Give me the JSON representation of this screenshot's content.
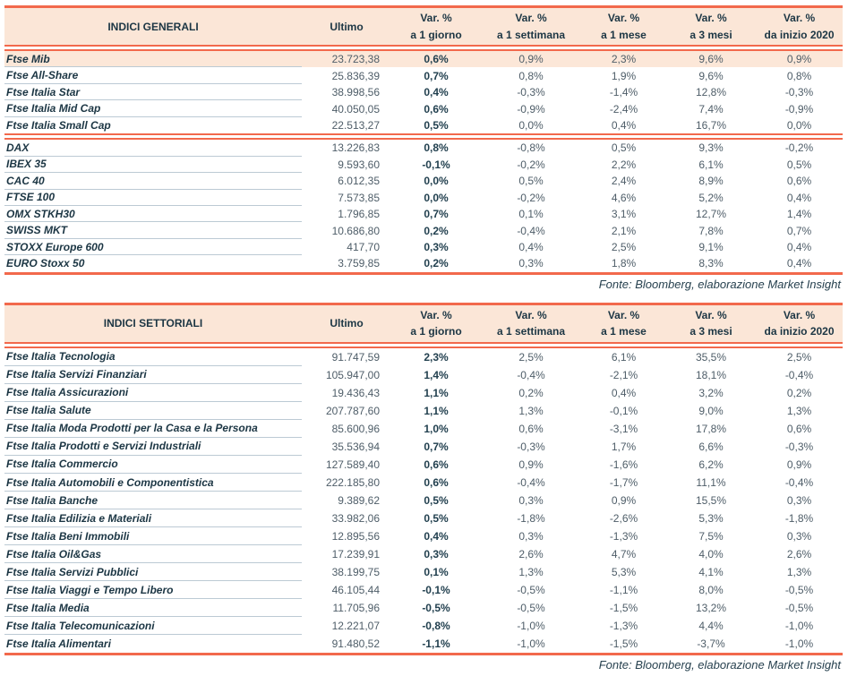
{
  "colors": {
    "accent_orange": "#F2694C",
    "header_peach": "#FBE6D7",
    "highlight_row": "#FCE7D8",
    "text_dark": "#1C3644"
  },
  "tables": [
    {
      "title": "INDICI GENERALI",
      "ultimo_label": "Ultimo",
      "var_columns": [
        {
          "top": "Var. %",
          "bottom": "a 1 giorno"
        },
        {
          "top": "Var. %",
          "bottom": "a 1 settimana"
        },
        {
          "top": "Var. %",
          "bottom": "a 1 mese"
        },
        {
          "top": "Var. %",
          "bottom": "a 3 mesi"
        },
        {
          "top": "Var. %",
          "bottom": "da inizio 2020"
        }
      ],
      "rows": [
        {
          "name": "Ftse Mib",
          "ultimo": "23.723,38",
          "var_1d": "0,6%",
          "var_1w": "0,9%",
          "var_1m": "2,3%",
          "var_3m": "9,6%",
          "var_ytd": "0,9%",
          "highlight": true
        },
        {
          "name": "Ftse All-Share",
          "ultimo": "25.836,39",
          "var_1d": "0,7%",
          "var_1w": "0,8%",
          "var_1m": "1,9%",
          "var_3m": "9,6%",
          "var_ytd": "0,8%"
        },
        {
          "name": "Ftse Italia Star",
          "ultimo": "38.998,56",
          "var_1d": "0,4%",
          "var_1w": "-0,3%",
          "var_1m": "-1,4%",
          "var_3m": "12,8%",
          "var_ytd": "-0,3%"
        },
        {
          "name": "Ftse Italia Mid Cap",
          "ultimo": "40.050,05",
          "var_1d": "0,6%",
          "var_1w": "-0,9%",
          "var_1m": "-2,4%",
          "var_3m": "7,4%",
          "var_ytd": "-0,9%"
        },
        {
          "name": "Ftse Italia Small Cap",
          "ultimo": "22.513,27",
          "var_1d": "0,5%",
          "var_1w": "0,0%",
          "var_1m": "0,4%",
          "var_3m": "16,7%",
          "var_ytd": "0,0%",
          "divider_after": true
        },
        {
          "name": "DAX",
          "ultimo": "13.226,83",
          "var_1d": "0,8%",
          "var_1w": "-0,8%",
          "var_1m": "0,5%",
          "var_3m": "9,3%",
          "var_ytd": "-0,2%"
        },
        {
          "name": "IBEX 35",
          "ultimo": "9.593,60",
          "var_1d": "-0,1%",
          "var_1w": "-0,2%",
          "var_1m": "2,2%",
          "var_3m": "6,1%",
          "var_ytd": "0,5%"
        },
        {
          "name": "CAC 40",
          "ultimo": "6.012,35",
          "var_1d": "0,0%",
          "var_1w": "0,5%",
          "var_1m": "2,4%",
          "var_3m": "8,9%",
          "var_ytd": "0,6%"
        },
        {
          "name": "FTSE 100",
          "ultimo": "7.573,85",
          "var_1d": "0,0%",
          "var_1w": "-0,2%",
          "var_1m": "4,6%",
          "var_3m": "5,2%",
          "var_ytd": "0,4%"
        },
        {
          "name": "OMX STKH30",
          "ultimo": "1.796,85",
          "var_1d": "0,7%",
          "var_1w": "0,1%",
          "var_1m": "3,1%",
          "var_3m": "12,7%",
          "var_ytd": "1,4%"
        },
        {
          "name": "SWISS MKT",
          "ultimo": "10.686,80",
          "var_1d": "0,2%",
          "var_1w": "-0,4%",
          "var_1m": "2,1%",
          "var_3m": "7,8%",
          "var_ytd": "0,7%"
        },
        {
          "name": "STOXX Europe 600",
          "ultimo": "417,70",
          "var_1d": "0,3%",
          "var_1w": "0,4%",
          "var_1m": "2,5%",
          "var_3m": "9,1%",
          "var_ytd": "0,4%"
        },
        {
          "name": "EURO Stoxx 50",
          "ultimo": "3.759,85",
          "var_1d": "0,2%",
          "var_1w": "0,3%",
          "var_1m": "1,8%",
          "var_3m": "8,3%",
          "var_ytd": "0,4%"
        }
      ],
      "source": "Fonte: Bloomberg, elaborazione Market Insight"
    },
    {
      "title": "INDICI SETTORIALI",
      "ultimo_label": "Ultimo",
      "var_columns": [
        {
          "top": "Var. %",
          "bottom": "a 1 giorno"
        },
        {
          "top": "Var. %",
          "bottom": "a 1 settimana"
        },
        {
          "top": "Var. %",
          "bottom": "a 1 mese"
        },
        {
          "top": "Var. %",
          "bottom": "a 3 mesi"
        },
        {
          "top": "Var. %",
          "bottom": "da inizio 2020"
        }
      ],
      "rows": [
        {
          "name": "Ftse Italia Tecnologia",
          "ultimo": "91.747,59",
          "var_1d": "2,3%",
          "var_1w": "2,5%",
          "var_1m": "6,1%",
          "var_3m": "35,5%",
          "var_ytd": "2,5%"
        },
        {
          "name": "Ftse Italia Servizi Finanziari",
          "ultimo": "105.947,00",
          "var_1d": "1,4%",
          "var_1w": "-0,4%",
          "var_1m": "-2,1%",
          "var_3m": "18,1%",
          "var_ytd": "-0,4%"
        },
        {
          "name": "Ftse Italia Assicurazioni",
          "ultimo": "19.436,43",
          "var_1d": "1,1%",
          "var_1w": "0,2%",
          "var_1m": "0,4%",
          "var_3m": "3,2%",
          "var_ytd": "0,2%"
        },
        {
          "name": "Ftse Italia Salute",
          "ultimo": "207.787,60",
          "var_1d": "1,1%",
          "var_1w": "1,3%",
          "var_1m": "-0,1%",
          "var_3m": "9,0%",
          "var_ytd": "1,3%"
        },
        {
          "name": "Ftse Italia Moda Prodotti per la Casa e la Persona",
          "ultimo": "85.600,96",
          "var_1d": "1,0%",
          "var_1w": "0,6%",
          "var_1m": "-3,1%",
          "var_3m": "17,8%",
          "var_ytd": "0,6%"
        },
        {
          "name": "Ftse Italia Prodotti e Servizi Industriali",
          "ultimo": "35.536,94",
          "var_1d": "0,7%",
          "var_1w": "-0,3%",
          "var_1m": "1,7%",
          "var_3m": "6,6%",
          "var_ytd": "-0,3%"
        },
        {
          "name": "Ftse Italia Commercio",
          "ultimo": "127.589,40",
          "var_1d": "0,6%",
          "var_1w": "0,9%",
          "var_1m": "-1,6%",
          "var_3m": "6,2%",
          "var_ytd": "0,9%"
        },
        {
          "name": "Ftse Italia Automobili e Componentistica",
          "ultimo": "222.185,80",
          "var_1d": "0,6%",
          "var_1w": "-0,4%",
          "var_1m": "-1,7%",
          "var_3m": "11,1%",
          "var_ytd": "-0,4%"
        },
        {
          "name": "Ftse Italia Banche",
          "ultimo": "9.389,62",
          "var_1d": "0,5%",
          "var_1w": "0,3%",
          "var_1m": "0,9%",
          "var_3m": "15,5%",
          "var_ytd": "0,3%"
        },
        {
          "name": "Ftse Italia Edilizia e Materiali",
          "ultimo": "33.982,06",
          "var_1d": "0,5%",
          "var_1w": "-1,8%",
          "var_1m": "-2,6%",
          "var_3m": "5,3%",
          "var_ytd": "-1,8%"
        },
        {
          "name": "Ftse Italia Beni Immobili",
          "ultimo": "12.895,56",
          "var_1d": "0,4%",
          "var_1w": "0,3%",
          "var_1m": "-1,3%",
          "var_3m": "7,5%",
          "var_ytd": "0,3%"
        },
        {
          "name": "Ftse Italia Oil&Gas",
          "ultimo": "17.239,91",
          "var_1d": "0,3%",
          "var_1w": "2,6%",
          "var_1m": "4,7%",
          "var_3m": "4,0%",
          "var_ytd": "2,6%"
        },
        {
          "name": "Ftse Italia Servizi Pubblici",
          "ultimo": "38.199,75",
          "var_1d": "0,1%",
          "var_1w": "1,3%",
          "var_1m": "5,3%",
          "var_3m": "4,1%",
          "var_ytd": "1,3%"
        },
        {
          "name": "Ftse Italia Viaggi e Tempo Libero",
          "ultimo": "46.105,44",
          "var_1d": "-0,1%",
          "var_1w": "-0,5%",
          "var_1m": "-1,1%",
          "var_3m": "8,0%",
          "var_ytd": "-0,5%"
        },
        {
          "name": "Ftse Italia Media",
          "ultimo": "11.705,96",
          "var_1d": "-0,5%",
          "var_1w": "-0,5%",
          "var_1m": "-1,5%",
          "var_3m": "13,2%",
          "var_ytd": "-0,5%"
        },
        {
          "name": "Ftse Italia Telecomunicazioni",
          "ultimo": "12.221,07",
          "var_1d": "-0,8%",
          "var_1w": "-1,0%",
          "var_1m": "-1,3%",
          "var_3m": "4,4%",
          "var_ytd": "-1,0%"
        },
        {
          "name": "Ftse Italia Alimentari",
          "ultimo": "91.480,52",
          "var_1d": "-1,1%",
          "var_1w": "-1,0%",
          "var_1m": "-1,5%",
          "var_3m": "-3,7%",
          "var_ytd": "-1,0%"
        }
      ],
      "source": "Fonte: Bloomberg, elaborazione Market Insight"
    }
  ]
}
